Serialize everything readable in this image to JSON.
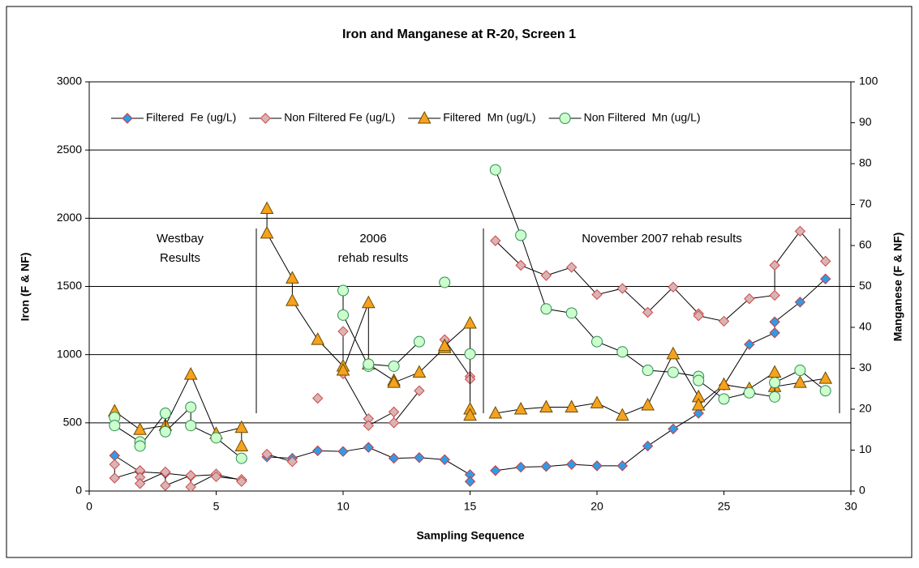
{
  "chart_data": {
    "type": "line",
    "title": "Iron and Manganese at R-20, Screen 1",
    "x_label": "Sampling Sequence",
    "y_label": "Iron (F & NF)",
    "y2_label": "Manganese (F & NF)",
    "xlim": [
      0,
      30
    ],
    "xticks": [
      0,
      5,
      10,
      15,
      20,
      25,
      30
    ],
    "ylim": [
      0,
      3000
    ],
    "yticks": [
      0,
      500,
      1000,
      1500,
      2000,
      2500,
      3000
    ],
    "y2lim": [
      0,
      100
    ],
    "y2ticks": [
      0,
      10,
      20,
      30,
      40,
      50,
      60,
      70,
      80,
      90,
      100
    ],
    "grid": true,
    "legend": "top",
    "annotations": [
      [
        "Westbay",
        "Results"
      ],
      [
        "2006",
        "rehab results"
      ],
      [
        "November 2007 rehab results"
      ]
    ],
    "series": [
      {
        "name": "Filtered  Fe (ug/L)",
        "marker": "diamond",
        "color": "#3399e6",
        "edgecolor": "#c04040",
        "x": [
          1,
          2,
          3,
          4,
          5,
          6,
          null,
          7,
          8,
          9,
          10,
          11,
          12,
          13,
          14,
          15,
          15,
          null,
          16,
          17,
          18,
          19,
          20,
          21,
          22,
          23,
          24,
          25,
          26,
          27,
          27,
          28,
          29
        ],
        "values": [
          260,
          140,
          130,
          110,
          120,
          80,
          null,
          250,
          240,
          295,
          290,
          320,
          240,
          245,
          230,
          120,
          70,
          null,
          150,
          175,
          180,
          195,
          185,
          185,
          330,
          455,
          570,
          775,
          1075,
          1160,
          1240,
          1385,
          1555
        ]
      },
      {
        "name": "Non Filtered Fe (ug/L)",
        "marker": "diamond",
        "color": "#d8b4b4",
        "edgecolor": "#d04848",
        "x": [
          1,
          1,
          2,
          2,
          2,
          3,
          3,
          4,
          4,
          5,
          5,
          6,
          6,
          null,
          7,
          8,
          null,
          9,
          null,
          10,
          10,
          11,
          11,
          12,
          12,
          13,
          null,
          14,
          15,
          15,
          null,
          16,
          17,
          18,
          19,
          20,
          21,
          22,
          23,
          24,
          24,
          25,
          26,
          27,
          27,
          28,
          29
        ],
        "values": [
          195,
          95,
          150,
          100,
          55,
          140,
          40,
          115,
          30,
          125,
          105,
          85,
          70,
          null,
          270,
          215,
          null,
          680,
          null,
          1170,
          860,
          530,
          480,
          580,
          500,
          735,
          null,
          1110,
          840,
          820,
          null,
          1835,
          1655,
          1580,
          1640,
          1440,
          1485,
          1310,
          1495,
          1300,
          1285,
          1245,
          1410,
          1435,
          1655,
          1905,
          1685
        ]
      },
      {
        "name": "Filtered  Mn (ug/L)",
        "marker": "triangle",
        "color": "#f5a21e",
        "edgecolor": "#6b4a00",
        "axis": "y2",
        "x": [
          1,
          2,
          3,
          4,
          5,
          6,
          6,
          null,
          7,
          7,
          8,
          8,
          9,
          10,
          10,
          11,
          11,
          12,
          12,
          13,
          14,
          14,
          15,
          15,
          15,
          null,
          16,
          17,
          18,
          19,
          20,
          21,
          22,
          23,
          24,
          24,
          25,
          26,
          27,
          27,
          28,
          29
        ],
        "values": [
          19.5,
          15,
          16,
          28.5,
          14,
          15.5,
          11,
          null,
          69,
          63,
          52,
          46.5,
          37,
          30.5,
          29.5,
          46,
          31,
          27,
          26.5,
          29,
          35,
          35.5,
          41,
          20,
          18.5,
          null,
          19,
          20,
          20.5,
          20.5,
          21.5,
          18.5,
          21,
          33.5,
          23,
          21,
          26,
          25,
          29,
          25.5,
          26.5,
          27.5
        ]
      },
      {
        "name": "Non Filtered  Mn (ug/L)",
        "marker": "circle",
        "color": "#ccffcc",
        "edgecolor": "#2e8b57",
        "axis": "y2",
        "x": [
          1,
          1,
          2,
          2,
          3,
          3,
          4,
          4,
          5,
          6,
          null,
          10,
          10,
          11,
          11,
          12,
          13,
          null,
          14,
          null,
          15,
          null,
          16,
          17,
          18,
          19,
          20,
          21,
          22,
          23,
          24,
          24,
          25,
          26,
          27,
          27,
          28,
          29
        ],
        "values": [
          18,
          16,
          12,
          11,
          19,
          14.5,
          20.5,
          16,
          13,
          8,
          null,
          49,
          43,
          30.5,
          31,
          30.5,
          36.5,
          null,
          51,
          null,
          33.5,
          null,
          78.5,
          62.5,
          44.5,
          43.5,
          36.5,
          34,
          29.5,
          29,
          28,
          27,
          22.5,
          24,
          23,
          26.5,
          29.5,
          24.5
        ]
      }
    ]
  }
}
